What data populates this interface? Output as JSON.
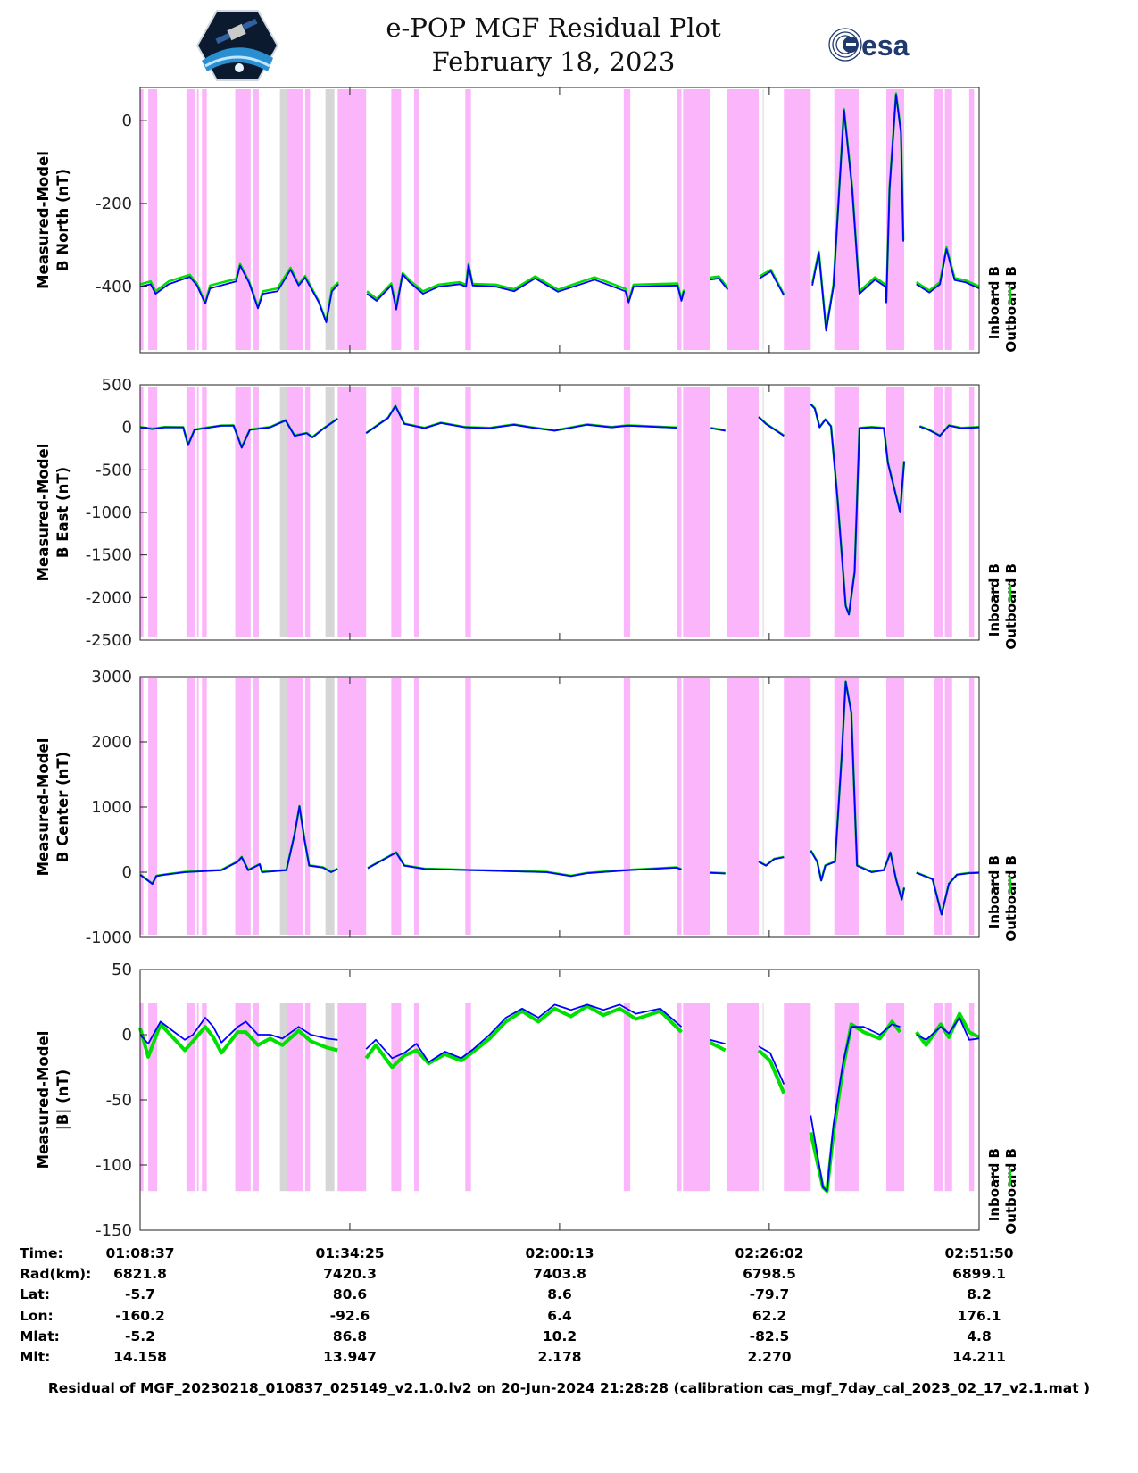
{
  "title": {
    "line1": "e-POP MGF Residual Plot",
    "line2": "February 18, 2023"
  },
  "logos": {
    "left": "CASSIOPE",
    "right": "esa"
  },
  "colors": {
    "inboard": "#0000ff",
    "outboard": "#00e000",
    "band_magenta": "#fbb6fb",
    "band_gray": "#d6d6d6"
  },
  "chart_data": {
    "type": "line",
    "x_unit": "minutes since 01:08:37",
    "xlim": [
      0,
      103.22
    ],
    "xticks": [
      0,
      25.8,
      51.6,
      77.4,
      103.22
    ],
    "legend": {
      "placement": "right",
      "entries": [
        "Inboard B",
        "Outboard B"
      ]
    },
    "bands": [
      {
        "start": 0,
        "end": 0.4,
        "kind": "magenta"
      },
      {
        "start": 1.0,
        "end": 2.1,
        "kind": "magenta"
      },
      {
        "start": 5.7,
        "end": 6.8,
        "kind": "magenta"
      },
      {
        "start": 7.0,
        "end": 7.2,
        "kind": "magenta"
      },
      {
        "start": 7.6,
        "end": 8.2,
        "kind": "magenta"
      },
      {
        "start": 11.7,
        "end": 13.6,
        "kind": "magenta"
      },
      {
        "start": 13.9,
        "end": 14.6,
        "kind": "magenta"
      },
      {
        "start": 17.2,
        "end": 18.1,
        "kind": "gray"
      },
      {
        "start": 18.1,
        "end": 20.0,
        "kind": "magenta"
      },
      {
        "start": 20.3,
        "end": 20.9,
        "kind": "magenta"
      },
      {
        "start": 22.8,
        "end": 23.9,
        "kind": "gray"
      },
      {
        "start": 24.3,
        "end": 27.8,
        "kind": "magenta"
      },
      {
        "start": 30.9,
        "end": 32.1,
        "kind": "magenta"
      },
      {
        "start": 33.7,
        "end": 34.3,
        "kind": "magenta"
      },
      {
        "start": 40.0,
        "end": 40.7,
        "kind": "magenta"
      },
      {
        "start": 59.5,
        "end": 60.3,
        "kind": "magenta"
      },
      {
        "start": 66.0,
        "end": 66.6,
        "kind": "magenta"
      },
      {
        "start": 66.8,
        "end": 70.1,
        "kind": "magenta"
      },
      {
        "start": 72.2,
        "end": 76.1,
        "kind": "magenta"
      },
      {
        "start": 76.6,
        "end": 76.7,
        "kind": "gray"
      },
      {
        "start": 79.2,
        "end": 82.5,
        "kind": "magenta"
      },
      {
        "start": 85.4,
        "end": 88.4,
        "kind": "magenta"
      },
      {
        "start": 91.8,
        "end": 94.0,
        "kind": "magenta"
      },
      {
        "start": 97.7,
        "end": 98.8,
        "kind": "magenta"
      },
      {
        "start": 99.0,
        "end": 99.9,
        "kind": "magenta"
      },
      {
        "start": 102.0,
        "end": 102.6,
        "kind": "magenta"
      }
    ],
    "panels": [
      {
        "ylabel": [
          "Measured-Model",
          "B North (nT)"
        ],
        "ylim": [
          -560,
          80
        ],
        "yticks": [
          0,
          -200,
          -400
        ],
        "x": [
          0,
          1.3,
          1.9,
          3.5,
          6.1,
          7.0,
          8.0,
          8.6,
          11.8,
          12.3,
          13.4,
          14.5,
          15.1,
          16.9,
          18.5,
          19.5,
          20.3,
          22.0,
          22.9,
          23.6,
          24.4,
          26,
          27.9,
          29.1,
          30.9,
          31.5,
          32.3,
          33.2,
          34.8,
          36.7,
          39.3,
          40.1,
          40.4,
          40.9,
          43.8,
          46.0,
          48.6,
          51.4,
          55.9,
          59.7,
          60.1,
          60.7,
          66.1,
          66.6,
          66.9,
          68,
          70.1,
          71.2,
          72.3,
          74,
          76.2,
          77.6,
          79.2,
          81,
          82.7,
          83.5,
          84.4,
          85.3,
          86.6,
          87.6,
          88.5,
          90.4,
          91.7,
          91.8,
          92.2,
          93.0,
          93.6,
          93.9,
          94.5,
          95.5,
          97.1,
          98.4,
          99.2,
          100.2,
          101.5,
          103.2
        ],
        "inboard": [
          -401,
          -395,
          -418,
          -395,
          -377,
          -398,
          -442,
          -405,
          -388,
          -350,
          -391,
          -453,
          -418,
          -412,
          -360,
          -398,
          -379,
          -439,
          -487,
          -412,
          -395,
          null,
          -418,
          -435,
          -398,
          -456,
          -371,
          -391,
          -418,
          -401,
          -395,
          -401,
          -349,
          -398,
          -401,
          -412,
          -381,
          -413,
          -384,
          -412,
          -439,
          -401,
          -398,
          -435,
          -412,
          null,
          -384,
          -381,
          -408,
          null,
          -381,
          -364,
          -422,
          null,
          -398,
          -319,
          -507,
          -401,
          25,
          -166,
          -418,
          -384,
          -401,
          -439,
          -166,
          63,
          -29,
          -292,
          null,
          -395,
          -415,
          -395,
          -310,
          -385,
          -390,
          -405
        ],
        "outboard": [
          -395,
          -388,
          -412,
          -388,
          -372,
          -393,
          -440,
          -398,
          -382,
          -346,
          -388,
          -450,
          -412,
          -405,
          -355,
          -395,
          -375,
          -437,
          -485,
          -405,
          -390,
          null,
          -412,
          -430,
          -393,
          -452,
          -368,
          -386,
          -412,
          -396,
          -390,
          -396,
          -346,
          -394,
          -396,
          -407,
          -376,
          -408,
          -378,
          -406,
          -436,
          -396,
          -393,
          -432,
          -408,
          null,
          -379,
          -376,
          -404,
          null,
          -376,
          -360,
          -420,
          null,
          -393,
          -316,
          -504,
          -396,
          28,
          -162,
          -412,
          -378,
          -396,
          -436,
          -162,
          66,
          -25,
          -288,
          null,
          -390,
          -410,
          -390,
          -306,
          -380,
          -385,
          -400
        ]
      },
      {
        "ylabel": [
          "Measured-Model",
          "B East (nT)"
        ],
        "ylim": [
          -2500,
          500
        ],
        "yticks": [
          500,
          0,
          -500,
          -1000,
          -1500,
          -2000,
          -2500
        ],
        "x": [
          0,
          1.5,
          3,
          5.3,
          5.9,
          6.7,
          8,
          10,
          11.5,
          12.5,
          13.5,
          16,
          17.9,
          19.0,
          20.5,
          21.2,
          22.5,
          24.3,
          26,
          27.8,
          30.5,
          31.4,
          32.5,
          35,
          37,
          40,
          43,
          46,
          48,
          51,
          55,
          58,
          60,
          66,
          68,
          70.2,
          72,
          74,
          76.1,
          77,
          79.2,
          81,
          82.5,
          83,
          83.6,
          84.3,
          85,
          85.8,
          86.8,
          87.2,
          87.9,
          88.5,
          90,
          91.5,
          92,
          93.5,
          94.0,
          95,
          95.9,
          97,
          98.4,
          99.5,
          101,
          103.2
        ],
        "inboard": [
          0,
          -20,
          0,
          0,
          -210,
          -30,
          -10,
          20,
          20,
          -240,
          -30,
          0,
          80,
          -100,
          -70,
          -120,
          -20,
          100,
          null,
          -70,
          110,
          250,
          40,
          -10,
          50,
          0,
          -10,
          30,
          0,
          -40,
          30,
          0,
          20,
          -5,
          null,
          -10,
          -40,
          null,
          120,
          40,
          -100,
          null,
          270,
          220,
          0,
          90,
          10,
          -850,
          -2100,
          -2200,
          -1700,
          -10,
          0,
          -10,
          -420,
          -1000,
          -400,
          null,
          10,
          -30,
          -100,
          20,
          -10,
          0
        ],
        "outboard": [
          5,
          -15,
          5,
          2,
          -205,
          -25,
          -5,
          22,
          24,
          -235,
          -25,
          4,
          84,
          -95,
          -66,
          -115,
          -16,
          104,
          null,
          -66,
          114,
          254,
          44,
          -6,
          54,
          4,
          -6,
          34,
          4,
          -36,
          34,
          4,
          24,
          -1,
          null,
          -6,
          -36,
          null,
          124,
          44,
          -96,
          null,
          274,
          224,
          4,
          94,
          14,
          -845,
          -2095,
          -2195,
          -1695,
          -6,
          4,
          -6,
          -415,
          -995,
          -395,
          null,
          14,
          -26,
          -96,
          24,
          -6,
          4
        ]
      },
      {
        "ylabel": [
          "Measured-Model",
          "B Center (nT)"
        ],
        "ylim": [
          -1000,
          3000
        ],
        "yticks": [
          3000,
          2000,
          1000,
          0,
          -1000
        ],
        "x": [
          0,
          1.5,
          2,
          3,
          5.5,
          10,
          12,
          12.5,
          13.3,
          14.7,
          15,
          18,
          19.0,
          19.6,
          20.2,
          20.8,
          22.5,
          23.5,
          24.3,
          26,
          28,
          31.5,
          32.5,
          35,
          50,
          53,
          55,
          60,
          66,
          66.6,
          68,
          70.1,
          72,
          74,
          76.1,
          77,
          78,
          79.2,
          81,
          82.5,
          83.3,
          83.8,
          84.3,
          85.5,
          86.3,
          86.8,
          87.5,
          88.2,
          90,
          91.5,
          92.3,
          93,
          93.7,
          94.0,
          95,
          95.5,
          97.5,
          98.6,
          99.5,
          100.5,
          102,
          103.2
        ],
        "inboard": [
          -40,
          -180,
          -60,
          -40,
          0,
          30,
          160,
          230,
          30,
          120,
          0,
          30,
          580,
          1010,
          510,
          100,
          70,
          0,
          50,
          null,
          60,
          300,
          100,
          50,
          0,
          -60,
          -15,
          30,
          70,
          40,
          null,
          -10,
          -20,
          null,
          160,
          100,
          200,
          230,
          null,
          330,
          160,
          -130,
          100,
          160,
          1750,
          2920,
          2450,
          100,
          0,
          30,
          300,
          -110,
          -420,
          -240,
          null,
          -10,
          -110,
          -650,
          -180,
          -40,
          -15,
          -10
        ],
        "outboard": [
          -35,
          -175,
          -55,
          -35,
          5,
          35,
          165,
          235,
          35,
          125,
          5,
          35,
          585,
          1015,
          515,
          105,
          75,
          5,
          55,
          null,
          65,
          305,
          105,
          55,
          5,
          -55,
          -10,
          35,
          75,
          45,
          null,
          -5,
          -15,
          null,
          165,
          105,
          205,
          235,
          null,
          335,
          165,
          -125,
          105,
          165,
          1755,
          2925,
          2455,
          105,
          5,
          35,
          305,
          -105,
          -415,
          -235,
          null,
          -5,
          -105,
          -645,
          -175,
          -35,
          -10,
          -5
        ]
      },
      {
        "ylabel": [
          "Measured-Model",
          "|B| (nT)"
        ],
        "ylim": [
          -150,
          50
        ],
        "yticks": [
          50,
          0,
          -50,
          -100,
          -150
        ],
        "x": [
          0,
          1.0,
          2.5,
          4,
          5.5,
          6.5,
          8,
          9,
          10,
          12,
          13,
          14.5,
          16,
          17.5,
          19.5,
          21,
          23,
          24.3,
          26,
          27.8,
          29,
          31,
          32.5,
          34,
          35.5,
          37.5,
          39.5,
          41,
          43,
          45,
          47,
          49,
          51,
          53,
          55,
          57,
          59,
          61,
          64,
          66.6,
          68,
          70.1,
          72,
          74,
          76.1,
          77.5,
          79.2,
          81,
          82.5,
          84,
          84.5,
          85.3,
          86.5,
          87.5,
          89,
          91,
          92.5,
          93.5,
          94.5,
          95.5,
          96.7,
          98.5,
          99.5,
          100.8,
          102,
          103.2
        ],
        "inboard": [
          0,
          -7,
          10,
          3,
          -4,
          0,
          13,
          6,
          -6,
          6,
          10,
          0,
          0,
          -3,
          6,
          0,
          -3,
          -4,
          null,
          -11,
          -4,
          -18,
          -14,
          -7,
          -21,
          -13,
          -18,
          -11,
          0,
          13,
          20,
          13,
          23,
          19,
          23,
          19,
          23,
          16,
          20,
          6,
          null,
          -4,
          -7,
          null,
          -9,
          -14,
          -38,
          null,
          -62,
          -117,
          -120,
          -69,
          -21,
          6,
          6,
          0,
          8,
          6,
          null,
          0,
          -4,
          6,
          1,
          13,
          -4,
          -3
        ],
        "outboard": [
          5,
          -17,
          8,
          -2,
          -12,
          -5,
          6,
          -2,
          -14,
          2,
          2,
          -8,
          -3,
          -8,
          3,
          -5,
          -10,
          -12,
          null,
          -18,
          -8,
          -25,
          -16,
          -12,
          -22,
          -15,
          -20,
          -13,
          -3,
          10,
          18,
          10,
          20,
          14,
          22,
          15,
          20,
          12,
          18,
          2,
          null,
          -6,
          -12,
          null,
          -12,
          -20,
          -45,
          null,
          -75,
          -117,
          -120,
          -75,
          -25,
          8,
          2,
          -3,
          10,
          2,
          null,
          2,
          -8,
          8,
          -2,
          16,
          2,
          -2
        ]
      }
    ]
  },
  "table": {
    "row_labels": [
      "Time:",
      "Rad(km):",
      "Lat:",
      "Lon:",
      "Mlat:",
      "Mlt:"
    ],
    "columns": [
      [
        "01:08:37",
        "6821.8",
        "-5.7",
        "-160.2",
        "-5.2",
        "14.158"
      ],
      [
        "01:34:25",
        "7420.3",
        "80.6",
        "-92.6",
        "86.8",
        "13.947"
      ],
      [
        "02:00:13",
        "7403.8",
        "8.6",
        "6.4",
        "10.2",
        "2.178"
      ],
      [
        "02:26:02",
        "6798.5",
        "-79.7",
        "62.2",
        "-82.5",
        "2.270"
      ],
      [
        "02:51:50",
        "6899.1",
        "8.2",
        "176.1",
        "4.8",
        "14.211"
      ]
    ]
  },
  "footer": "Residual of MGF_20230218_010837_025149_v2.1.0.lv2 on 20-Jun-2024 21:28:28 (calibration cas_mgf_7day_cal_2023_02_17_v2.1.mat )"
}
